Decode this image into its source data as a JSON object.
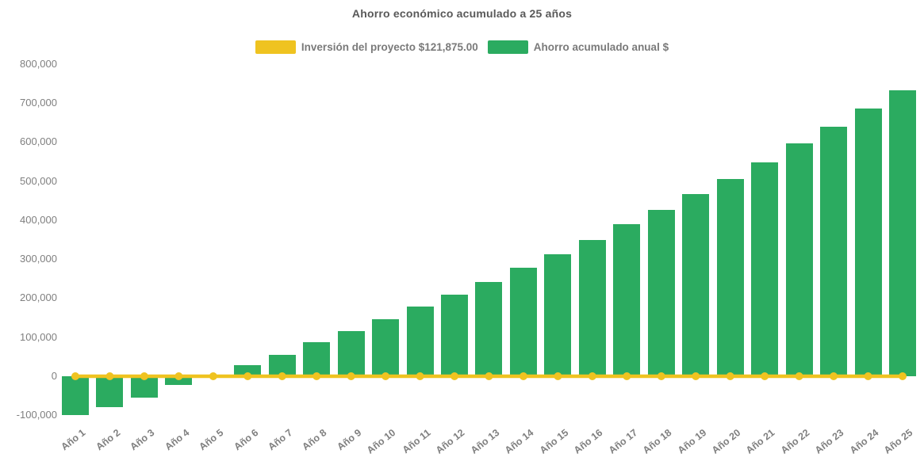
{
  "title": "Ahorro económico acumulado a 25 años",
  "legend": {
    "items": [
      {
        "label": "Inversión del proyecto $121,875.00",
        "color": "#EFC320",
        "series_type": "line"
      },
      {
        "label": "Ahorro acumulado anual $",
        "color": "#2BAB60",
        "series_type": "bar"
      }
    ],
    "position": "top-center"
  },
  "chart_data": {
    "type": "bar",
    "title": "Ahorro económico acumulado a 25 años",
    "categories": [
      "Año 1",
      "Año 2",
      "Año 3",
      "Año 4",
      "Año 5",
      "Año 6",
      "Año 7",
      "Año 8",
      "Año 9",
      "Año 10",
      "Año 11",
      "Año 12",
      "Año 13",
      "Año 14",
      "Año 15",
      "Año 16",
      "Año 17",
      "Año 18",
      "Año 19",
      "Año 20",
      "Año 21",
      "Año 22",
      "Año 23",
      "Año 24",
      "Año 25"
    ],
    "series": [
      {
        "name": "Ahorro acumulado anual $",
        "type": "bar",
        "color": "#2BAB60",
        "values": [
          -100000,
          -79000,
          -54000,
          -23000,
          0,
          29000,
          55000,
          87000,
          115000,
          147000,
          178000,
          208000,
          242000,
          278000,
          313000,
          349000,
          389000,
          426000,
          467000,
          506000,
          548000,
          596000,
          639000,
          686000,
          732000
        ]
      },
      {
        "name": "Inversión del proyecto $121,875.00",
        "type": "line",
        "color": "#EFC320",
        "marker": "circle",
        "investment_value": 121875.0,
        "values": [
          0,
          0,
          0,
          0,
          0,
          0,
          0,
          0,
          0,
          0,
          0,
          0,
          0,
          0,
          0,
          0,
          0,
          0,
          0,
          0,
          0,
          0,
          0,
          0,
          0
        ]
      }
    ],
    "xlabel": "",
    "ylabel": "",
    "ylim": [
      -100000,
      800000
    ],
    "ytick_step": 100000,
    "ytick_labels": [
      "-100,000",
      "0",
      "100,000",
      "200,000",
      "300,000",
      "400,000",
      "500,000",
      "600,000",
      "700,000",
      "800,000"
    ],
    "grid": false,
    "legend_position": "top",
    "x_label_rotation_deg": -38
  },
  "colors": {
    "background": "#ffffff",
    "bar_green": "#2BAB60",
    "line_yellow": "#EFC320",
    "title_text": "#595959",
    "axis_text": "#7f7f7f",
    "legend_text": "#7a7a7a"
  }
}
